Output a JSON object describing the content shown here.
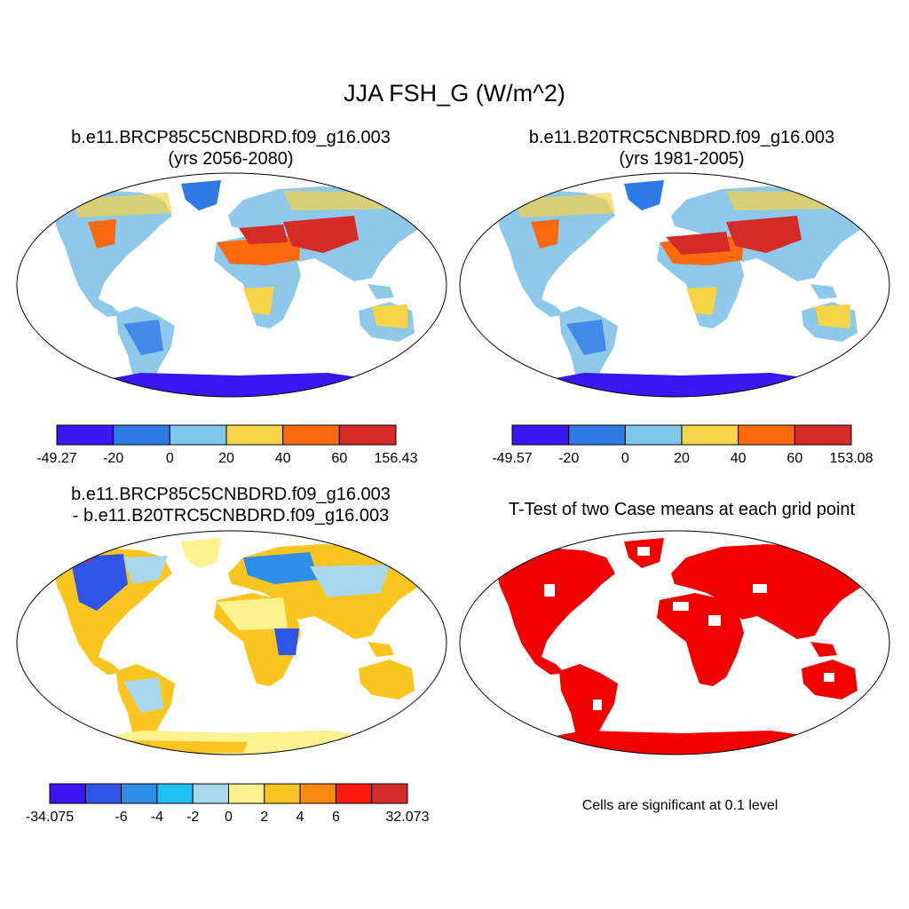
{
  "title": "JJA FSH_G (W/m^2)",
  "panels": [
    {
      "id": "future",
      "title_lines": [
        "b.e11.BRCP85C5CNBDRD.f09_g16.003",
        "(yrs 2056-2080)"
      ],
      "colorbar": {
        "colors": [
          "#3a16f0",
          "#2f7be6",
          "#7dc7ea",
          "#f5d447",
          "#fb6a0f",
          "#d42b27"
        ],
        "labels": [
          "-49.27",
          "-20",
          "0",
          "20",
          "40",
          "60",
          "156.43"
        ]
      }
    },
    {
      "id": "historical",
      "title_lines": [
        "b.e11.B20TRC5CNBDRD.f09_g16.003",
        "(yrs 1981-2005)"
      ],
      "colorbar": {
        "colors": [
          "#3a16f0",
          "#2f7be6",
          "#7dc7ea",
          "#f5d447",
          "#fb6a0f",
          "#d42b27"
        ],
        "labels": [
          "-49.57",
          "-20",
          "0",
          "20",
          "40",
          "60",
          "153.08"
        ]
      }
    },
    {
      "id": "difference",
      "title_lines": [
        "b.e11.BRCP85C5CNBDRD.f09_g16.003",
        "- b.e11.B20TRC5CNBDRD.f09_g16.003"
      ],
      "colorbar": {
        "colors": [
          "#3b16f0",
          "#2f55e8",
          "#2f8ee8",
          "#1fc1f2",
          "#a9d7ee",
          "#fbf18f",
          "#fbc51f",
          "#fb8a10",
          "#fb1a0f",
          "#d42b2b"
        ],
        "labels": [
          "-34.075",
          "-6",
          "-4",
          "-2",
          "0",
          "2",
          "4",
          "6",
          "32.073"
        ]
      }
    },
    {
      "id": "ttest",
      "title_lines": [
        "T-Test of two Case means at each grid point"
      ],
      "note": "Cells are significant at 0.1 level",
      "sig_color": "#f20000"
    }
  ]
}
